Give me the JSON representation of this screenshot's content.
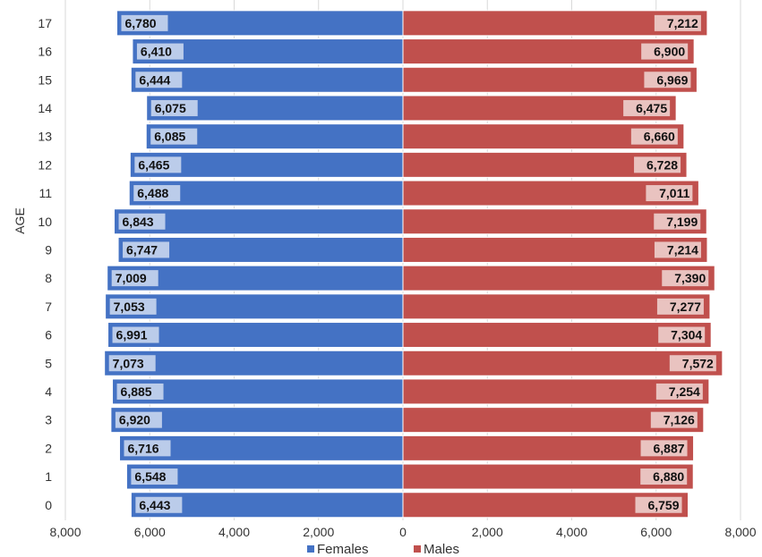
{
  "chart_data": {
    "type": "bar",
    "orientation": "horizontal-diverging",
    "title": "",
    "ylabel": "AGE",
    "xlabel": "",
    "categories": [
      "0",
      "1",
      "2",
      "3",
      "4",
      "5",
      "6",
      "7",
      "8",
      "9",
      "10",
      "11",
      "12",
      "13",
      "14",
      "15",
      "16",
      "17"
    ],
    "series": [
      {
        "name": "Females",
        "color": "#4472c4",
        "side": "left",
        "values": [
          6443,
          6548,
          6716,
          6920,
          6885,
          7073,
          6991,
          7053,
          7009,
          6747,
          6843,
          6488,
          6465,
          6085,
          6075,
          6444,
          6410,
          6780
        ],
        "labels": [
          "6,443",
          "6,548",
          "6,716",
          "6,920",
          "6,885",
          "7,073",
          "6,991",
          "7,053",
          "7,009",
          "6,747",
          "6,843",
          "6,488",
          "6,465",
          "6,085",
          "6,075",
          "6,444",
          "6,410",
          "6,780"
        ]
      },
      {
        "name": "Males",
        "color": "#c0504d",
        "side": "right",
        "values": [
          6759,
          6880,
          6887,
          7126,
          7254,
          7572,
          7304,
          7277,
          7390,
          7214,
          7199,
          7011,
          6728,
          6660,
          6475,
          6969,
          6900,
          7212
        ],
        "labels": [
          "6,759",
          "6,880",
          "6,887",
          "7,126",
          "7,254",
          "7,572",
          "7,304",
          "7,277",
          "7,390",
          "7,214",
          "7,199",
          "7,011",
          "6,728",
          "6,660",
          "6,475",
          "6,969",
          "6,900",
          "7,212"
        ]
      }
    ],
    "xlim": [
      -8000,
      8000
    ],
    "x_ticks": [
      -8000,
      -6000,
      -4000,
      -2000,
      0,
      2000,
      4000,
      6000,
      8000
    ],
    "x_tick_labels": [
      "8,000",
      "6,000",
      "4,000",
      "2,000",
      "0",
      "2,000",
      "4,000",
      "6,000",
      "8,000"
    ],
    "grid": "vertical",
    "legend": {
      "placement": "bottom",
      "entries": [
        "Females",
        "Males"
      ]
    }
  }
}
